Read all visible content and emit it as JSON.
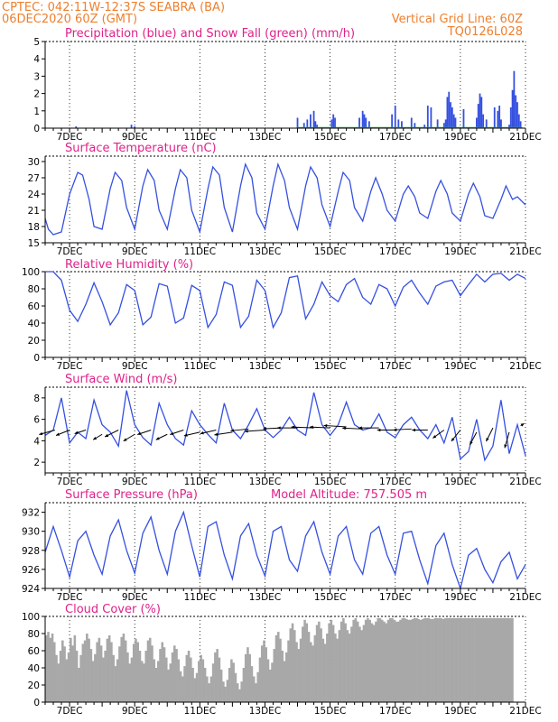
{
  "header": {
    "line1": "CPTEC:   042:11W-12:37S   SEABRA (BA)",
    "line2": "06DEC2020 60Z (GMT)",
    "grid_note": "Vertical Grid Line: 60Z",
    "code": "TQ0126L028"
  },
  "colors": {
    "header": "#ee7f2d",
    "title": "#e0218a",
    "line": "#3550e0",
    "snow": "#2db34a",
    "cloud": "#a8a8a8",
    "vector": "#000000"
  },
  "chart_data": [
    {
      "id": "precip",
      "type": "bar",
      "title": "Precipitation (blue) and Snow Fall (green) (mm/h)",
      "ylim": [
        0,
        5
      ],
      "yticks": [
        0,
        1,
        2,
        3,
        4,
        5
      ],
      "xticks": [
        "7DEC",
        "9DEC",
        "11DEC",
        "13DEC",
        "15DEC",
        "17DEC",
        "19DEC",
        "21DEC"
      ],
      "x_range_days": [
        6.25,
        21
      ],
      "series": [
        {
          "name": "Precipitation",
          "x": [
            7.2,
            8.9,
            9.0,
            14.0,
            14.2,
            14.3,
            14.4,
            14.5,
            14.55,
            14.6,
            15.05,
            15.1,
            15.15,
            15.9,
            16.0,
            16.05,
            16.1,
            16.2,
            16.9,
            17.0,
            17.1,
            17.2,
            17.5,
            17.6,
            17.9,
            18.0,
            18.1,
            18.3,
            18.5,
            18.55,
            18.6,
            18.65,
            18.7,
            18.75,
            18.8,
            18.85,
            19.1,
            19.5,
            19.55,
            19.6,
            19.65,
            19.7,
            19.8,
            20.05,
            20.15,
            20.2,
            20.25,
            20.5,
            20.55,
            20.6,
            20.65,
            20.7,
            20.75,
            20.8,
            20.85
          ],
          "values": [
            0.1,
            0.2,
            0.1,
            0.6,
            0.3,
            0.5,
            0.8,
            1.0,
            0.4,
            0.2,
            0.5,
            0.8,
            0.6,
            0.6,
            1.0,
            0.8,
            0.6,
            0.4,
            0.8,
            1.3,
            0.5,
            0.4,
            0.6,
            0.3,
            0.2,
            1.3,
            1.2,
            0.5,
            0.3,
            0.5,
            1.8,
            2.1,
            1.5,
            1.2,
            0.8,
            0.6,
            1.1,
            0.6,
            1.4,
            2.0,
            1.8,
            0.8,
            0.5,
            1.2,
            1.0,
            1.3,
            0.5,
            0.2,
            1.2,
            2.2,
            3.3,
            1.9,
            1.5,
            0.8,
            0.4
          ]
        },
        {
          "name": "Snow Fall",
          "x": [],
          "values": []
        }
      ]
    },
    {
      "id": "temp",
      "type": "line",
      "title": "Surface Temperature (nC)",
      "ylim": [
        15,
        31
      ],
      "yticks": [
        15,
        18,
        21,
        24,
        27,
        30
      ],
      "xticks": [
        "7DEC",
        "9DEC",
        "11DEC",
        "13DEC",
        "15DEC",
        "17DEC",
        "19DEC",
        "21DEC"
      ],
      "x": [
        6.25,
        6.35,
        6.5,
        6.75,
        7.0,
        7.25,
        7.4,
        7.6,
        7.75,
        8.0,
        8.25,
        8.4,
        8.6,
        8.75,
        9.0,
        9.25,
        9.4,
        9.6,
        9.75,
        10.0,
        10.25,
        10.4,
        10.6,
        10.75,
        11.0,
        11.25,
        11.4,
        11.6,
        11.75,
        12.0,
        12.25,
        12.4,
        12.6,
        12.75,
        13.0,
        13.25,
        13.4,
        13.6,
        13.75,
        14.0,
        14.25,
        14.4,
        14.6,
        14.75,
        15.0,
        15.25,
        15.4,
        15.6,
        15.75,
        16.0,
        16.25,
        16.4,
        16.6,
        16.75,
        17.0,
        17.25,
        17.4,
        17.6,
        17.75,
        18.0,
        18.25,
        18.4,
        18.6,
        18.75,
        19.0,
        19.25,
        19.4,
        19.6,
        19.75,
        20.0,
        20.25,
        20.4,
        20.6,
        20.75,
        21.0
      ],
      "series": [
        {
          "name": "",
          "values": [
            19.5,
            17.5,
            16.5,
            17.0,
            24.0,
            28.0,
            27.5,
            23.0,
            18.0,
            17.5,
            25.0,
            28.0,
            26.5,
            21.5,
            17.5,
            25.5,
            28.5,
            26.5,
            21.0,
            17.5,
            25.0,
            28.5,
            27.0,
            21.0,
            17.0,
            25.0,
            29.0,
            27.5,
            21.5,
            17.0,
            25.5,
            29.5,
            27.0,
            20.5,
            17.5,
            25.5,
            29.5,
            26.5,
            21.5,
            17.5,
            25.5,
            29.0,
            27.0,
            22.0,
            18.0,
            24.5,
            28.0,
            26.5,
            21.5,
            19.0,
            24.5,
            27.0,
            24.0,
            21.0,
            19.0,
            24.0,
            25.5,
            23.5,
            20.5,
            19.5,
            24.5,
            26.5,
            24.0,
            20.5,
            19.0,
            24.0,
            26.0,
            23.5,
            20.0,
            19.5,
            23.0,
            25.5,
            23.0,
            23.5,
            22.0
          ]
        }
      ]
    },
    {
      "id": "rh",
      "type": "line",
      "title": "Relative Humidity (%)",
      "ylim": [
        0,
        100
      ],
      "yticks": [
        0,
        20,
        40,
        60,
        80,
        100
      ],
      "xticks": [
        "7DEC",
        "9DEC",
        "11DEC",
        "13DEC",
        "15DEC",
        "17DEC",
        "19DEC",
        "21DEC"
      ],
      "x": [
        6.25,
        6.5,
        6.75,
        7.0,
        7.25,
        7.5,
        7.75,
        8.0,
        8.25,
        8.5,
        8.75,
        9.0,
        9.25,
        9.5,
        9.75,
        10.0,
        10.25,
        10.5,
        10.75,
        11.0,
        11.25,
        11.5,
        11.75,
        12.0,
        12.25,
        12.5,
        12.75,
        13.0,
        13.25,
        13.5,
        13.75,
        14.0,
        14.25,
        14.5,
        14.75,
        15.0,
        15.25,
        15.5,
        15.75,
        16.0,
        16.25,
        16.5,
        16.75,
        17.0,
        17.25,
        17.5,
        17.75,
        18.0,
        18.25,
        18.5,
        18.75,
        19.0,
        19.25,
        19.5,
        19.75,
        20.0,
        20.25,
        20.5,
        20.75,
        21.0
      ],
      "series": [
        {
          "name": "",
          "values": [
            100,
            100,
            90,
            55,
            42,
            62,
            87,
            65,
            38,
            52,
            85,
            78,
            38,
            47,
            86,
            83,
            40,
            46,
            84,
            78,
            35,
            50,
            88,
            84,
            35,
            48,
            90,
            78,
            35,
            52,
            93,
            95,
            45,
            62,
            88,
            72,
            65,
            85,
            92,
            70,
            62,
            85,
            80,
            60,
            82,
            90,
            75,
            62,
            83,
            88,
            90,
            72,
            85,
            97,
            88,
            97,
            98,
            90,
            97,
            92
          ]
        }
      ]
    },
    {
      "id": "wind",
      "type": "line",
      "title": "Surface Wind (m/s)",
      "ylim": [
        1,
        9
      ],
      "yticks": [
        2,
        4,
        6,
        8
      ],
      "xticks": [
        "7DEC",
        "9DEC",
        "11DEC",
        "13DEC",
        "15DEC",
        "17DEC",
        "19DEC",
        "21DEC"
      ],
      "x": [
        6.25,
        6.5,
        6.75,
        7.0,
        7.25,
        7.5,
        7.75,
        8.0,
        8.25,
        8.5,
        8.75,
        9.0,
        9.25,
        9.5,
        9.75,
        10.0,
        10.25,
        10.5,
        10.75,
        11.0,
        11.25,
        11.5,
        11.75,
        12.0,
        12.25,
        12.5,
        12.75,
        13.0,
        13.25,
        13.5,
        13.75,
        14.0,
        14.25,
        14.5,
        14.75,
        15.0,
        15.25,
        15.5,
        15.75,
        16.0,
        16.25,
        16.5,
        16.75,
        17.0,
        17.25,
        17.5,
        17.75,
        18.0,
        18.25,
        18.5,
        18.75,
        19.0,
        19.25,
        19.5,
        19.75,
        20.0,
        20.25,
        20.5,
        20.75,
        21.0
      ],
      "series": [
        {
          "name": "",
          "values": [
            4.5,
            5.0,
            8.0,
            3.8,
            4.8,
            4.2,
            7.8,
            5.5,
            4.8,
            3.5,
            8.7,
            5.5,
            4.3,
            3.6,
            7.5,
            5.5,
            4.2,
            3.6,
            6.8,
            5.5,
            4.6,
            3.8,
            7.5,
            5.0,
            4.2,
            5.5,
            7.0,
            5.0,
            4.3,
            5.0,
            6.2,
            5.0,
            4.5,
            8.5,
            5.5,
            4.5,
            5.5,
            7.6,
            5.5,
            5.0,
            5.2,
            6.5,
            4.8,
            4.3,
            5.5,
            6.2,
            5.0,
            4.2,
            5.5,
            3.8,
            6.2,
            2.3,
            3.0,
            6.0,
            2.2,
            3.5,
            7.8,
            2.8,
            5.5,
            2.6
          ]
        }
      ],
      "vectors": {
        "x": [
          6.55,
          7.0,
          7.5,
          8.0,
          8.5,
          9.0,
          9.5,
          10.0,
          10.5,
          11.0,
          11.5,
          12.0,
          12.5,
          13.0,
          13.5,
          14.0,
          14.5,
          15.0,
          15.5,
          16.0,
          16.5,
          17.0,
          17.5,
          18.0,
          18.5,
          19.0,
          19.5,
          20.0,
          20.5,
          20.85
        ],
        "y": [
          5.0,
          5.0,
          5.0,
          4.6,
          5.0,
          4.6,
          5.0,
          4.6,
          5.0,
          4.8,
          5.0,
          4.8,
          5.1,
          5.0,
          5.2,
          5.2,
          5.2,
          5.2,
          5.3,
          5.1,
          5.2,
          5.0,
          5.1,
          5.0,
          5.0,
          5.0,
          4.8,
          5.2,
          4.8,
          5.4
        ],
        "u": [
          -3.5,
          -3.0,
          -2.5,
          -2.0,
          -3.0,
          -2.5,
          -3.0,
          -2.5,
          -3.0,
          -3.5,
          -3.5,
          -4.0,
          -4.0,
          -4.5,
          -4.0,
          -4.5,
          -5.0,
          -4.5,
          -5.0,
          -4.5,
          -4.5,
          -4.0,
          -4.0,
          -3.5,
          -2.5,
          -2.0,
          -1.5,
          -1.5,
          -1.0,
          0.8
        ],
        "v": [
          -1.0,
          -1.2,
          -0.8,
          -1.2,
          -1.5,
          -1.5,
          -1.0,
          -1.2,
          -1.0,
          -0.8,
          -0.8,
          -0.6,
          -0.4,
          -0.3,
          -0.2,
          0.0,
          0.2,
          0.2,
          0.3,
          0.2,
          0.0,
          0.0,
          -0.2,
          0.0,
          -1.8,
          -2.5,
          -2.8,
          -3.0,
          -3.5,
          0.5
        ]
      }
    },
    {
      "id": "pressure",
      "type": "line",
      "title": "Surface Pressure (hPa)",
      "extra_label": "Model Altitude: 757.505  m",
      "ylim": [
        924,
        933
      ],
      "yticks": [
        924,
        926,
        928,
        930,
        932
      ],
      "xticks": [
        "7DEC",
        "9DEC",
        "11DEC",
        "13DEC",
        "15DEC",
        "17DEC",
        "19DEC",
        "21DEC"
      ],
      "x": [
        6.25,
        6.5,
        6.75,
        7.0,
        7.25,
        7.5,
        7.75,
        8.0,
        8.25,
        8.5,
        8.75,
        9.0,
        9.25,
        9.5,
        9.75,
        10.0,
        10.25,
        10.5,
        10.75,
        11.0,
        11.25,
        11.5,
        11.75,
        12.0,
        12.25,
        12.5,
        12.75,
        13.0,
        13.25,
        13.5,
        13.75,
        14.0,
        14.25,
        14.5,
        14.75,
        15.0,
        15.25,
        15.5,
        15.75,
        16.0,
        16.25,
        16.5,
        16.75,
        17.0,
        17.25,
        17.5,
        17.75,
        18.0,
        18.25,
        18.5,
        18.75,
        19.0,
        19.25,
        19.5,
        19.75,
        20.0,
        20.25,
        20.5,
        20.75,
        21.0
      ],
      "series": [
        {
          "name": "",
          "values": [
            927.8,
            930.5,
            928.0,
            925.2,
            929.0,
            930.0,
            927.5,
            925.5,
            929.5,
            931.2,
            928.0,
            925.6,
            929.8,
            931.5,
            928.0,
            925.5,
            930.0,
            932.0,
            928.5,
            925.2,
            930.5,
            931.0,
            927.5,
            925.0,
            929.5,
            930.8,
            927.5,
            925.3,
            930.0,
            930.5,
            927.0,
            925.8,
            929.5,
            931.0,
            927.8,
            925.5,
            929.5,
            930.5,
            927.0,
            925.5,
            929.8,
            930.5,
            927.5,
            925.5,
            929.8,
            930.0,
            927.0,
            924.5,
            928.5,
            929.8,
            926.5,
            924.0,
            927.5,
            928.2,
            926.0,
            924.6,
            926.8,
            927.8,
            925.0,
            926.5
          ]
        }
      ]
    },
    {
      "id": "cloud",
      "type": "bar",
      "title": "Cloud Cover (%)",
      "ylim": [
        0,
        100
      ],
      "yticks": [
        0,
        20,
        40,
        60,
        80,
        100
      ],
      "xticks": [
        "7DEC",
        "9DEC",
        "11DEC",
        "13DEC",
        "15DEC",
        "17DEC",
        "19DEC",
        "21DEC"
      ],
      "x_start_day": 6.25,
      "x_step_day": 0.0625,
      "series": [
        {
          "name": "",
          "values": [
            78,
            82,
            75,
            80,
            70,
            55,
            45,
            60,
            72,
            65,
            50,
            58,
            75,
            66,
            78,
            60,
            40,
            55,
            68,
            72,
            80,
            74,
            62,
            48,
            56,
            70,
            75,
            66,
            52,
            60,
            74,
            78,
            70,
            55,
            42,
            50,
            65,
            76,
            80,
            72,
            58,
            45,
            52,
            68,
            74,
            70,
            60,
            48,
            45,
            60,
            72,
            75,
            66,
            50,
            40,
            48,
            62,
            70,
            64,
            52,
            38,
            45,
            58,
            66,
            62,
            50,
            36,
            30,
            42,
            55,
            60,
            52,
            40,
            28,
            34,
            48,
            55,
            50,
            40,
            30,
            22,
            30,
            45,
            58,
            62,
            52,
            38,
            24,
            18,
            26,
            40,
            50,
            46,
            34,
            22,
            15,
            24,
            40,
            56,
            64,
            56,
            42,
            30,
            22,
            35,
            52,
            66,
            72,
            64,
            50,
            38,
            46,
            62,
            78,
            82,
            74,
            60,
            48,
            58,
            72,
            86,
            92,
            84,
            70,
            62,
            74,
            88,
            96,
            92,
            82,
            70,
            66,
            78,
            90,
            94,
            86,
            74,
            68,
            80,
            92,
            96,
            90,
            80,
            74,
            84,
            94,
            98,
            92,
            84,
            80,
            88,
            96,
            98,
            94,
            88,
            84,
            90,
            96,
            98,
            96,
            92,
            90,
            94,
            98,
            98,
            96,
            94,
            92,
            96,
            98,
            98,
            96,
            94,
            94,
            96,
            98,
            98,
            97,
            96,
            96,
            97,
            98,
            98,
            97,
            96,
            97,
            98,
            98,
            98,
            97,
            97,
            98,
            98,
            98,
            98,
            97,
            98,
            98,
            98,
            98,
            98,
            98,
            98,
            98,
            98,
            98,
            98,
            98,
            98,
            98,
            98,
            98,
            98,
            98,
            98,
            98,
            98,
            98,
            98,
            98,
            98,
            98,
            98,
            98,
            98,
            98,
            98,
            98,
            98,
            98
          ]
        }
      ]
    }
  ]
}
